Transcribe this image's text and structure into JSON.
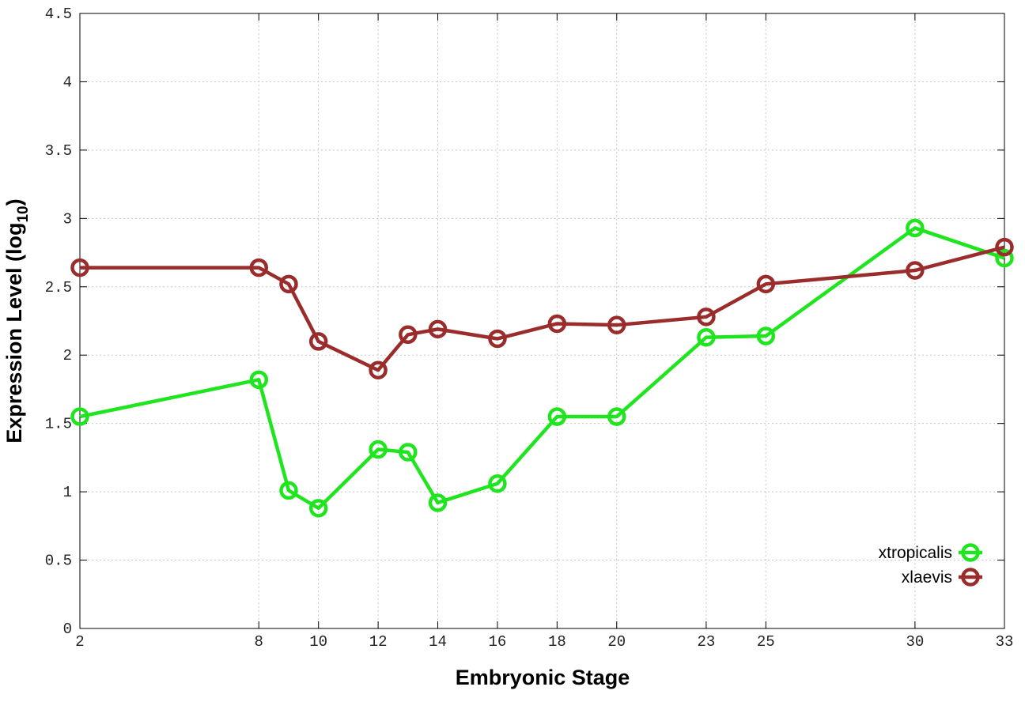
{
  "chart_data": {
    "type": "line",
    "xlabel": "Embryonic Stage",
    "ylabel": {
      "text": "Expression Level (log",
      "subscript": "10",
      "suffix": ")"
    },
    "x": [
      2,
      8,
      9,
      10,
      12,
      13,
      14,
      16,
      18,
      20,
      23,
      25,
      30,
      33
    ],
    "xlim": [
      2,
      33
    ],
    "xticks": [
      2,
      8,
      10,
      12,
      14,
      16,
      18,
      20,
      23,
      25,
      30,
      33
    ],
    "ylim": [
      0,
      4.5
    ],
    "yticks": [
      0,
      0.5,
      1,
      1.5,
      2,
      2.5,
      3,
      3.5,
      4,
      4.5
    ],
    "grid": true,
    "legend": "bottom-right",
    "series": [
      {
        "name": "xtropicalis",
        "color": "#1fe51f",
        "values": [
          1.55,
          1.82,
          1.01,
          0.88,
          1.31,
          1.29,
          0.92,
          1.06,
          1.55,
          1.55,
          2.13,
          2.14,
          2.93,
          2.71
        ]
      },
      {
        "name": "xlaevis",
        "color": "#9a2c2c",
        "values": [
          2.64,
          2.64,
          2.52,
          2.1,
          1.89,
          2.15,
          2.19,
          2.12,
          2.23,
          2.22,
          2.28,
          2.52,
          2.62,
          2.79
        ]
      }
    ]
  }
}
